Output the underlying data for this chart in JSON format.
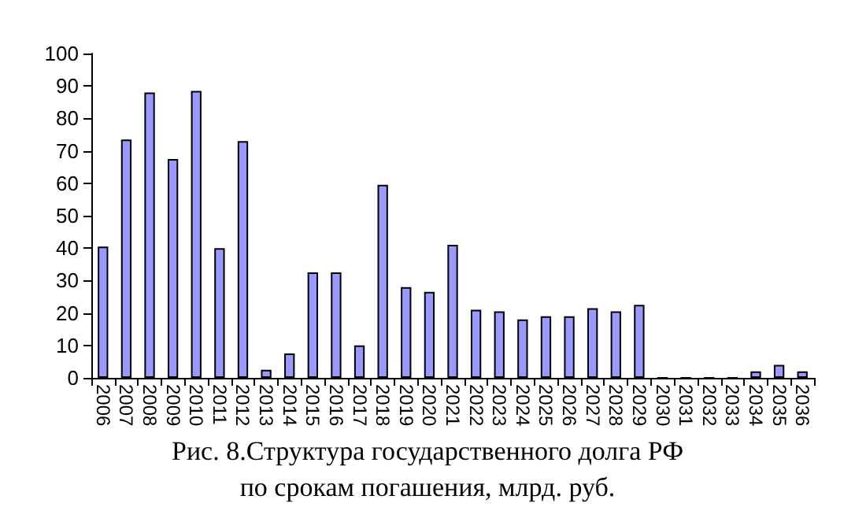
{
  "chart_data": {
    "type": "bar",
    "title": "Рис. 8.Структура государственного долга РФ\nпо срокам погашения, млрд. руб.",
    "categories": [
      "2006",
      "2007",
      "2008",
      "2009",
      "2010",
      "2011",
      "2012",
      "2013",
      "2014",
      "2015",
      "2016",
      "2017",
      "2018",
      "2019",
      "2020",
      "2021",
      "2022",
      "2023",
      "2024",
      "2025",
      "2026",
      "2027",
      "2028",
      "2029",
      "2030",
      "2031",
      "2032",
      "2033",
      "2034",
      "2035",
      "2036"
    ],
    "values": [
      40.5,
      73.5,
      88,
      67.5,
      88.5,
      40,
      73,
      2.5,
      7.5,
      32.5,
      32.5,
      10,
      59.5,
      28,
      26.5,
      41,
      21,
      20.5,
      18,
      19,
      19,
      21.5,
      20.5,
      22.5,
      0,
      0,
      0,
      0,
      2,
      4,
      2
    ],
    "color": "#9999ff",
    "ylim": [
      0,
      100
    ],
    "yticks": [
      0,
      10,
      20,
      30,
      40,
      50,
      60,
      70,
      80,
      90,
      100
    ],
    "grid": false
  }
}
